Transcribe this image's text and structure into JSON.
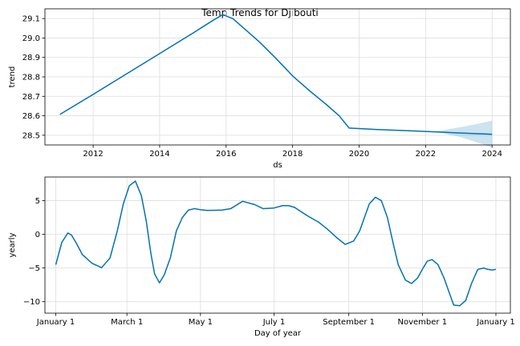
{
  "title": "Temp Trends for Djibouti",
  "colors": {
    "line": "#0072B2",
    "band": "#0072B2",
    "grid": "#dddddd",
    "axes": "#000000"
  },
  "chart_data": [
    {
      "type": "line",
      "name": "trend",
      "title": "Temp Trends for Djibouti",
      "xlabel": "ds",
      "ylabel": "trend",
      "xlim": [
        2010.55,
        2024.55
      ],
      "ylim": [
        28.45,
        29.15
      ],
      "xticks": [
        2012,
        2014,
        2016,
        2018,
        2020,
        2022,
        2024
      ],
      "xtick_labels": [
        "2012",
        "2014",
        "2016",
        "2018",
        "2020",
        "2022",
        "2024"
      ],
      "yticks": [
        28.5,
        28.6,
        28.7,
        28.8,
        28.9,
        29.0,
        29.1
      ],
      "ytick_labels": [
        "28.5",
        "28.6",
        "28.7",
        "28.8",
        "28.9",
        "29.0",
        "29.1"
      ],
      "grid": true,
      "x": [
        2011.0,
        2012.0,
        2013.0,
        2014.0,
        2015.0,
        2015.6,
        2015.9,
        2016.2,
        2016.6,
        2017.0,
        2017.5,
        2018.0,
        2018.5,
        2019.0,
        2019.4,
        2019.7,
        2020.5,
        2021.5,
        2022.2,
        2023.0,
        2024.0
      ],
      "y": [
        28.607,
        28.71,
        28.815,
        28.92,
        29.025,
        29.09,
        29.12,
        29.1,
        29.04,
        28.98,
        28.895,
        28.805,
        28.73,
        28.66,
        28.6,
        28.537,
        28.53,
        28.523,
        28.518,
        28.512,
        28.505
      ],
      "uncertainty": {
        "x": [
          2022.2,
          2022.5,
          2023.0,
          2023.5,
          2024.0
        ],
        "upper": [
          28.518,
          28.525,
          28.54,
          28.556,
          28.575
        ],
        "lower": [
          28.518,
          28.511,
          28.492,
          28.466,
          28.437
        ]
      }
    },
    {
      "type": "line",
      "name": "yearly",
      "xlabel": "Day of year",
      "ylabel": "yearly",
      "xlim": [
        -9,
        377
      ],
      "ylim": [
        -11.7,
        8.5
      ],
      "xticks": [
        0,
        59,
        120,
        181,
        243,
        304,
        365
      ],
      "xtick_labels": [
        "January 1",
        "March 1",
        "May 1",
        "July 1",
        "September 1",
        "November 1",
        "January 1"
      ],
      "yticks": [
        -10,
        -5,
        0,
        5
      ],
      "ytick_labels": [
        "−10",
        "−5",
        "0",
        "5"
      ],
      "grid": true,
      "x": [
        0,
        5,
        10,
        13,
        17,
        22,
        30,
        38,
        45,
        51,
        56,
        61,
        66,
        71,
        75,
        77,
        79,
        82,
        86,
        90,
        95,
        100,
        105,
        110,
        115,
        120,
        125,
        130,
        138,
        145,
        155,
        165,
        172,
        181,
        188,
        193,
        198,
        203,
        210,
        218,
        225,
        233,
        240,
        247,
        252,
        256,
        260,
        265,
        270,
        275,
        280,
        284,
        290,
        295,
        300,
        304,
        308,
        312,
        317,
        322,
        326,
        330,
        335,
        340,
        345,
        350,
        355,
        358,
        362,
        365
      ],
      "y": [
        -4.5,
        -1.2,
        0.2,
        -0.1,
        -1.3,
        -3.0,
        -4.3,
        -4.95,
        -3.5,
        0.5,
        4.5,
        7.2,
        7.9,
        5.7,
        2.0,
        -0.5,
        -3.0,
        -5.9,
        -7.2,
        -6.0,
        -3.5,
        0.5,
        2.5,
        3.6,
        3.8,
        3.65,
        3.55,
        3.55,
        3.6,
        3.8,
        4.9,
        4.4,
        3.8,
        3.9,
        4.25,
        4.25,
        4.0,
        3.4,
        2.6,
        1.8,
        0.8,
        -0.5,
        -1.5,
        -1.0,
        0.5,
        2.5,
        4.5,
        5.5,
        5.0,
        2.5,
        -1.5,
        -4.5,
        -6.8,
        -7.3,
        -6.5,
        -5.2,
        -4.0,
        -3.75,
        -4.5,
        -6.5,
        -8.5,
        -10.5,
        -10.6,
        -9.8,
        -7.2,
        -5.2,
        -5.0,
        -5.2,
        -5.3,
        -5.2
      ]
    }
  ]
}
